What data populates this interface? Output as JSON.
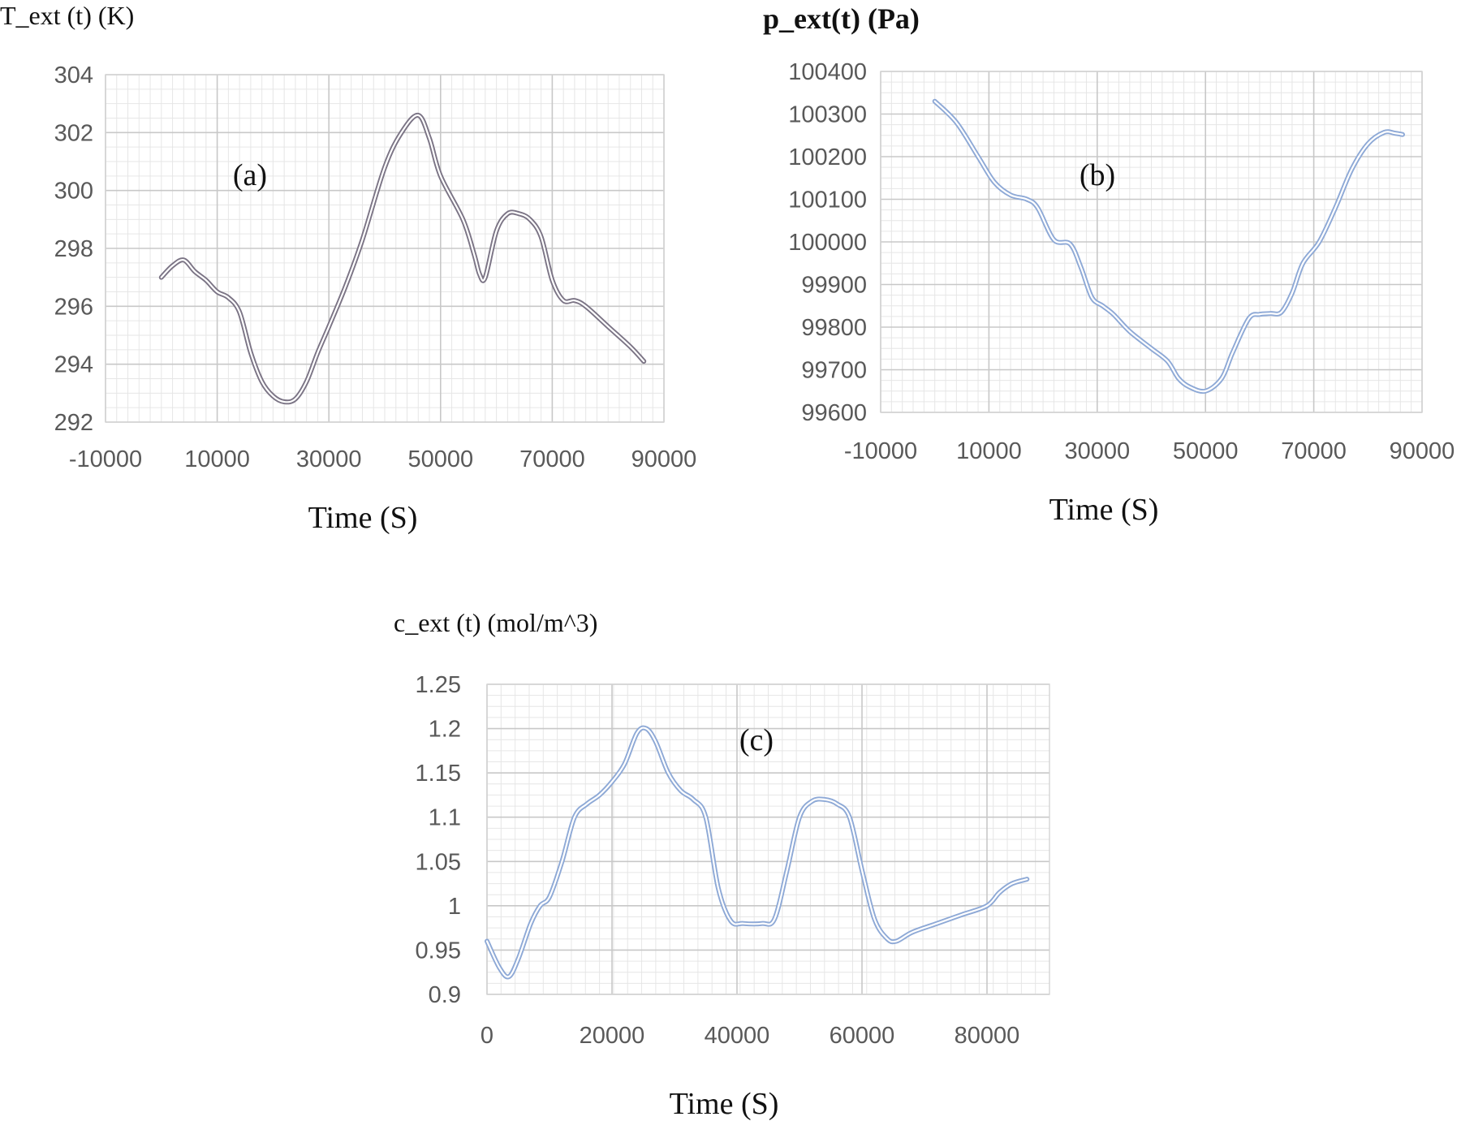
{
  "chart_data": [
    {
      "id": "a",
      "type": "line",
      "title": "T_ext (t) (K)",
      "panel_label": "(a)",
      "xlabel": "Time (S)",
      "xlim": [
        -10000,
        90000
      ],
      "ylim": [
        292,
        304
      ],
      "x_ticks": [
        "-10000",
        "10000",
        "30000",
        "50000",
        "70000",
        "90000"
      ],
      "y_ticks": [
        "292",
        "294",
        "296",
        "298",
        "300",
        "302",
        "304"
      ],
      "line_color": "#7b7485",
      "series": [
        {
          "x": [
            0,
            2000,
            4000,
            6000,
            8000,
            10000,
            12000,
            14000,
            16000,
            18000,
            20000,
            22000,
            24000,
            26000,
            28000,
            30000,
            33000,
            36000,
            40000,
            43000,
            46000,
            48000,
            50000,
            54000,
            56000,
            57000,
            58000,
            60000,
            62000,
            64000,
            66000,
            68000,
            70000,
            72000,
            74000,
            76000,
            80000,
            84000,
            86400
          ],
          "y": [
            297.0,
            297.4,
            297.6,
            297.2,
            296.9,
            296.5,
            296.3,
            295.8,
            294.4,
            293.4,
            292.9,
            292.7,
            292.8,
            293.4,
            294.4,
            295.3,
            296.7,
            298.3,
            300.8,
            302.0,
            302.6,
            301.8,
            300.5,
            299.0,
            297.8,
            297.1,
            297.0,
            298.6,
            299.2,
            299.2,
            299.0,
            298.4,
            296.9,
            296.2,
            296.2,
            296.0,
            295.3,
            294.6,
            294.1
          ]
        }
      ]
    },
    {
      "id": "b",
      "type": "line",
      "title": "p_ext(t) (Pa)",
      "panel_label": "(b)",
      "xlabel": "Time (S)",
      "xlim": [
        -10000,
        90000
      ],
      "ylim": [
        99600,
        100400
      ],
      "x_ticks": [
        "-10000",
        "10000",
        "30000",
        "50000",
        "70000",
        "90000"
      ],
      "y_ticks": [
        "99600",
        "99700",
        "99800",
        "99900",
        "100000",
        "100100",
        "100200",
        "100300",
        "100400"
      ],
      "line_color": "#8ea9d6",
      "series": [
        {
          "x": [
            0,
            4000,
            8000,
            11000,
            14000,
            17000,
            19000,
            22000,
            25000,
            27000,
            29000,
            31000,
            33000,
            36000,
            40000,
            43000,
            45000,
            47000,
            50000,
            53000,
            55000,
            58000,
            60000,
            62000,
            64000,
            66000,
            68000,
            71000,
            74000,
            77000,
            80000,
            83000,
            85000,
            86400
          ],
          "y": [
            100330,
            100280,
            100200,
            100140,
            100110,
            100100,
            100080,
            100005,
            99995,
            99940,
            99870,
            99850,
            99830,
            99790,
            99750,
            99720,
            99680,
            99660,
            99650,
            99680,
            99740,
            99820,
            99830,
            99832,
            99835,
            99880,
            99950,
            100000,
            100080,
            100170,
            100230,
            100257,
            100255,
            100252
          ]
        }
      ]
    },
    {
      "id": "c",
      "type": "line",
      "title": "c_ext (t)  (mol/m^3)",
      "panel_label": "(c)",
      "xlabel": "Time (S)",
      "xlim": [
        0,
        90000
      ],
      "ylim": [
        0.9,
        1.25
      ],
      "x_ticks": [
        "0",
        "20000",
        "40000",
        "60000",
        "80000"
      ],
      "y_ticks": [
        "0.9",
        "0.95",
        "1",
        "1.05",
        "1.1",
        "1.15",
        "1.2",
        "1.25"
      ],
      "line_color": "#8ea9d6",
      "series": [
        {
          "x": [
            0,
            2000,
            3500,
            5000,
            7000,
            8500,
            10000,
            12000,
            14000,
            16000,
            18000,
            20000,
            22000,
            24000,
            25500,
            27000,
            29000,
            31000,
            33000,
            35000,
            37000,
            39000,
            41000,
            44000,
            46000,
            48000,
            50000,
            52000,
            54000,
            56000,
            58000,
            60000,
            62000,
            64000,
            65500,
            68000,
            72000,
            76000,
            80000,
            82000,
            84000,
            86400
          ],
          "y": [
            0.96,
            0.93,
            0.92,
            0.94,
            0.98,
            1.0,
            1.01,
            1.05,
            1.1,
            1.115,
            1.125,
            1.14,
            1.16,
            1.195,
            1.2,
            1.185,
            1.15,
            1.13,
            1.12,
            1.1,
            1.02,
            0.983,
            0.98,
            0.98,
            0.985,
            1.04,
            1.1,
            1.118,
            1.12,
            1.115,
            1.1,
            1.04,
            0.985,
            0.963,
            0.96,
            0.97,
            0.98,
            0.99,
            1.0,
            1.015,
            1.025,
            1.03
          ]
        }
      ]
    }
  ]
}
